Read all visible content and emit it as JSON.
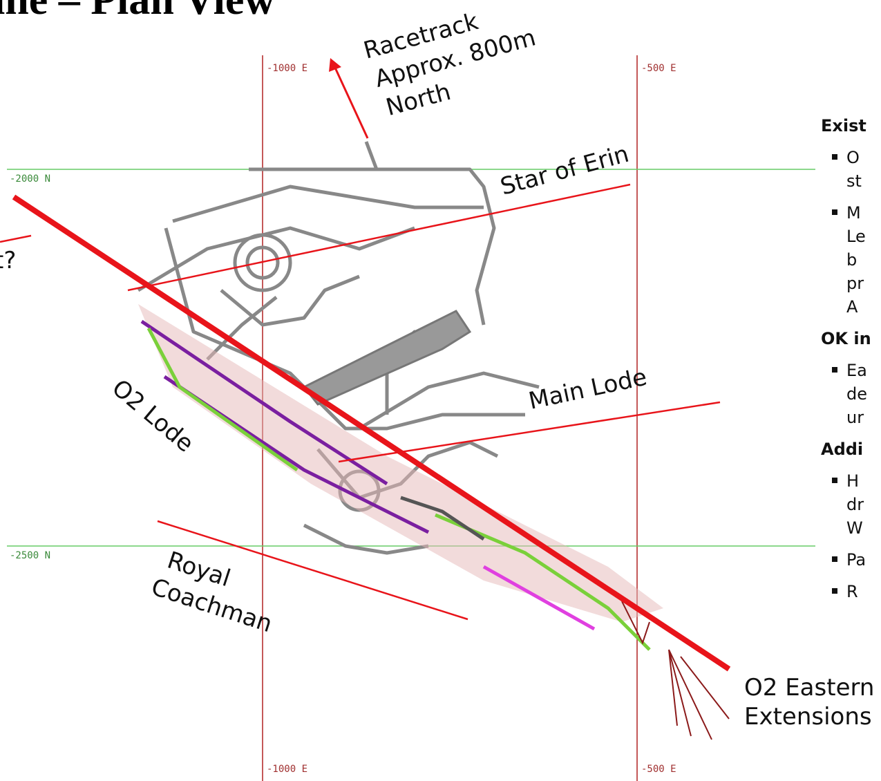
{
  "header": {
    "title": "ine – Plan View"
  },
  "grid": {
    "east_top": [
      "-1000 E",
      "-500 E"
    ],
    "east_bottom": [
      "-1000 E",
      "-500 E"
    ],
    "north": [
      "-2000 N",
      "-2500 N"
    ]
  },
  "annotations": {
    "racetrack": [
      "Racetrack",
      "Approx. 800m",
      "North"
    ],
    "star_of_erin": "Star of Erin",
    "main_lode": "Main Lode",
    "o2_lode": "O2 Lode",
    "royal_coachman": [
      "Royal",
      "Coachman"
    ],
    "o2_eastern": [
      "O2 Eastern",
      "Extensions"
    ],
    "fault": "t?"
  },
  "side_panel": {
    "sections": [
      {
        "heading": "Exist",
        "bullets": [
          [
            "O",
            "st"
          ],
          [
            "M",
            "Le",
            "b",
            "pr",
            "A"
          ]
        ]
      },
      {
        "heading": "OK in",
        "bullets": [
          [
            "Ea",
            "de",
            "ur"
          ]
        ]
      },
      {
        "heading": "Addi",
        "bullets": [
          [
            "H",
            "dr",
            "W"
          ],
          [
            "Pa"
          ],
          [
            "R"
          ]
        ]
      }
    ]
  }
}
